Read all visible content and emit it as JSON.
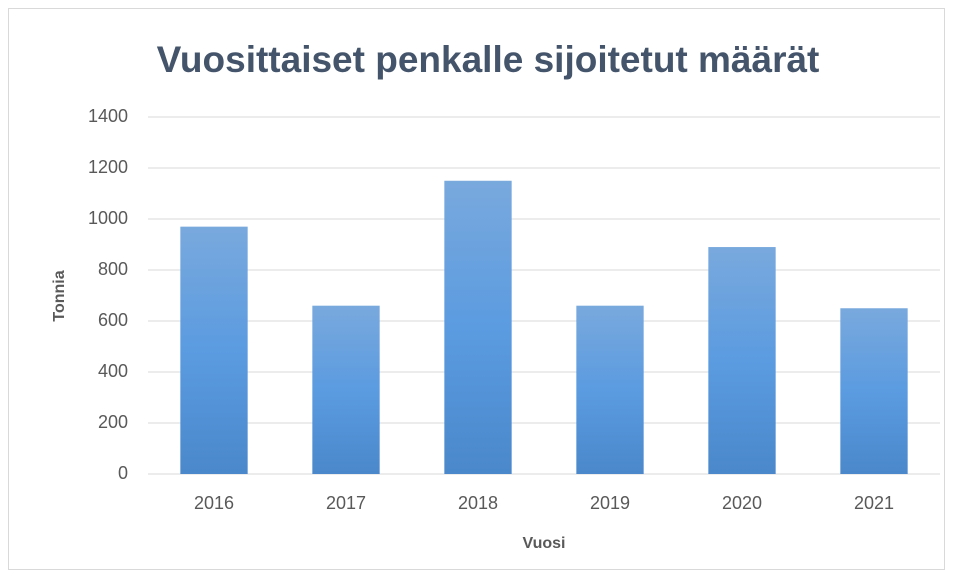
{
  "chart_data": {
    "type": "bar",
    "title": "Vuosittaiset penkalle sijoitetut määrät",
    "x_label": "Vuosi",
    "y_label": "Tonnia",
    "categories": [
      "2016",
      "2017",
      "2018",
      "2019",
      "2020",
      "2021"
    ],
    "values": [
      970,
      660,
      1150,
      660,
      890,
      650
    ],
    "color": "#5b9bd5",
    "ylim": [
      0,
      1400
    ],
    "yticks": [
      0,
      200,
      400,
      600,
      800,
      1000,
      1200,
      1400
    ],
    "grid": true
  }
}
